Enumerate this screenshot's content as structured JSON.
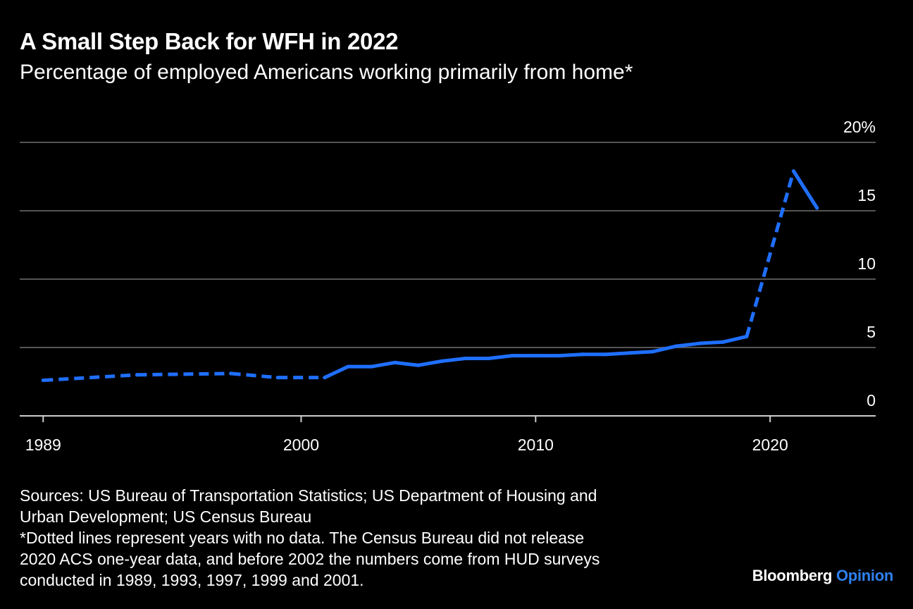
{
  "header": {
    "title": "A Small Step Back for WFH in 2022",
    "subtitle": "Percentage of employed Americans working primarily from home*"
  },
  "footnotes": {
    "sources_line1": "Sources: US Bureau of Transportation Statistics; US Department of Housing and",
    "sources_line2": "Urban Development; US Census Bureau",
    "note_line1": "*Dotted lines represent years with no data. The Census Bureau did not release",
    "note_line2": "2020 ACS one-year data, and before 2002 the numbers come from HUD surveys",
    "note_line3": "conducted in 1989, 1993, 1997, 1999 and 2001."
  },
  "brand": {
    "name": "Bloomberg",
    "section": "Opinion"
  },
  "colors": {
    "background": "#000000",
    "line": "#1f6fff",
    "grid": "#555555",
    "text": "#ffffff",
    "brand_accent": "#2f80ed"
  },
  "chart_data": {
    "type": "line",
    "title": "A Small Step Back for WFH in 2022",
    "subtitle": "Percentage of employed Americans working primarily from home*",
    "xlabel": "",
    "ylabel": "",
    "xlim": [
      1988,
      2024.5
    ],
    "ylim": [
      0,
      20
    ],
    "x_ticks": [
      1989,
      2000,
      2010,
      2020
    ],
    "y_ticks": [
      {
        "value": 0,
        "label": "0"
      },
      {
        "value": 5,
        "label": "5"
      },
      {
        "value": 10,
        "label": "10"
      },
      {
        "value": 15,
        "label": "15"
      },
      {
        "value": 20,
        "label": "20%"
      }
    ],
    "grid": "horizontal",
    "series": [
      {
        "points": [
          {
            "x": 1989,
            "y": 2.6
          },
          {
            "x": 1993,
            "y": 3.0
          },
          {
            "x": 1997,
            "y": 3.1
          },
          {
            "x": 1999,
            "y": 2.8
          },
          {
            "x": 2001,
            "y": 2.8
          },
          {
            "x": 2002,
            "y": 3.6
          },
          {
            "x": 2003,
            "y": 3.6
          },
          {
            "x": 2004,
            "y": 3.9
          },
          {
            "x": 2005,
            "y": 3.7
          },
          {
            "x": 2006,
            "y": 4.0
          },
          {
            "x": 2007,
            "y": 4.2
          },
          {
            "x": 2008,
            "y": 4.2
          },
          {
            "x": 2009,
            "y": 4.4
          },
          {
            "x": 2010,
            "y": 4.4
          },
          {
            "x": 2011,
            "y": 4.4
          },
          {
            "x": 2012,
            "y": 4.5
          },
          {
            "x": 2013,
            "y": 4.5
          },
          {
            "x": 2014,
            "y": 4.6
          },
          {
            "x": 2015,
            "y": 4.7
          },
          {
            "x": 2016,
            "y": 5.1
          },
          {
            "x": 2017,
            "y": 5.3
          },
          {
            "x": 2018,
            "y": 5.4
          },
          {
            "x": 2019,
            "y": 5.8
          },
          {
            "x": 2021,
            "y": 17.9
          },
          {
            "x": 2022,
            "y": 15.2
          }
        ],
        "dashed_segments": [
          [
            1989,
            2001
          ],
          [
            2019,
            2021
          ]
        ]
      }
    ]
  }
}
